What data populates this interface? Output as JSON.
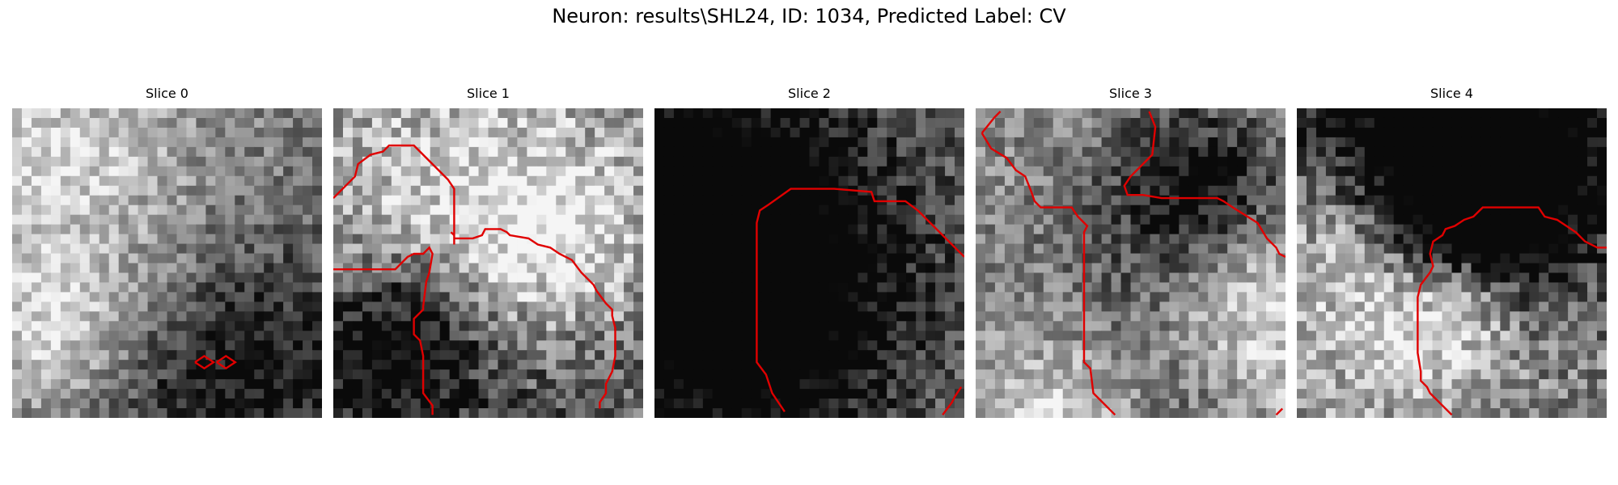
{
  "figure": {
    "title": "Neuron: results\\SHL24, ID: 1034, Predicted Label: CV"
  },
  "panels": [
    {
      "title": "Slice 0",
      "seed": 11,
      "base": 0.52,
      "contrast": 0.55,
      "contour_color": "#e00000",
      "contours": [
        [
          [
            0.59,
            0.82
          ],
          [
            0.62,
            0.8
          ],
          [
            0.65,
            0.82
          ],
          [
            0.62,
            0.84
          ],
          [
            0.59,
            0.82
          ]
        ],
        [
          [
            0.66,
            0.82
          ],
          [
            0.69,
            0.8
          ],
          [
            0.72,
            0.82
          ],
          [
            0.69,
            0.84
          ],
          [
            0.66,
            0.82
          ]
        ]
      ]
    },
    {
      "title": "Slice 1",
      "seed": 23,
      "base": 0.5,
      "contrast": 0.75,
      "contour_color": "#e00000",
      "contours": [
        [
          [
            0.0,
            0.29
          ],
          [
            0.07,
            0.22
          ],
          [
            0.08,
            0.18
          ],
          [
            0.12,
            0.15
          ],
          [
            0.16,
            0.14
          ],
          [
            0.18,
            0.12
          ],
          [
            0.26,
            0.12
          ],
          [
            0.31,
            0.17
          ],
          [
            0.34,
            0.2
          ],
          [
            0.37,
            0.23
          ],
          [
            0.39,
            0.26
          ],
          [
            0.39,
            0.37
          ],
          [
            0.39,
            0.38
          ],
          [
            0.39,
            0.4
          ],
          [
            0.39,
            0.42
          ],
          [
            0.39,
            0.43
          ],
          [
            0.39,
            0.44
          ],
          [
            0.39,
            0.41
          ],
          [
            0.39,
            0.42
          ],
          [
            0.39,
            0.41
          ],
          [
            0.39,
            0.4
          ],
          [
            0.39,
            0.41
          ],
          [
            0.39,
            0.42
          ],
          [
            0.39,
            0.41
          ],
          [
            0.38,
            0.4
          ],
          [
            0.39,
            0.41
          ],
          [
            0.39,
            0.42
          ],
          [
            0.39,
            0.41
          ],
          [
            0.39,
            0.4
          ],
          [
            0.39,
            0.41
          ],
          [
            0.39,
            0.42
          ],
          [
            0.39,
            0.41
          ],
          [
            0.39,
            0.42
          ],
          [
            0.39,
            0.41
          ],
          [
            0.39,
            0.4
          ],
          [
            0.39,
            0.41
          ],
          [
            0.39,
            0.42
          ],
          [
            0.39,
            0.41
          ],
          [
            0.39,
            0.4
          ],
          [
            0.39,
            0.41
          ],
          [
            0.39,
            0.42
          ],
          [
            0.41,
            0.42
          ],
          [
            0.43,
            0.42
          ],
          [
            0.45,
            0.42
          ],
          [
            0.48,
            0.41
          ],
          [
            0.49,
            0.39
          ],
          [
            0.5,
            0.39
          ],
          [
            0.54,
            0.39
          ],
          [
            0.56,
            0.4
          ],
          [
            0.57,
            0.41
          ],
          [
            0.63,
            0.42
          ],
          [
            0.66,
            0.44
          ],
          [
            0.7,
            0.45
          ],
          [
            0.73,
            0.47
          ],
          [
            0.77,
            0.49
          ],
          [
            0.8,
            0.53
          ],
          [
            0.84,
            0.57
          ],
          [
            0.85,
            0.59
          ],
          [
            0.88,
            0.63
          ],
          [
            0.9,
            0.65
          ],
          [
            0.9,
            0.67
          ],
          [
            0.91,
            0.71
          ],
          [
            0.91,
            0.8
          ],
          [
            0.9,
            0.85
          ],
          [
            0.89,
            0.87
          ],
          [
            0.88,
            0.89
          ],
          [
            0.88,
            0.92
          ],
          [
            0.86,
            0.95
          ],
          [
            0.86,
            0.97
          ]
        ],
        [
          [
            0.0,
            0.52
          ],
          [
            0.2,
            0.52
          ],
          [
            0.21,
            0.51
          ],
          [
            0.24,
            0.48
          ],
          [
            0.26,
            0.47
          ],
          [
            0.29,
            0.47
          ],
          [
            0.31,
            0.45
          ],
          [
            0.32,
            0.47
          ],
          [
            0.31,
            0.53
          ],
          [
            0.3,
            0.56
          ],
          [
            0.29,
            0.64
          ],
          [
            0.29,
            0.65
          ],
          [
            0.26,
            0.68
          ],
          [
            0.26,
            0.73
          ],
          [
            0.28,
            0.75
          ],
          [
            0.29,
            0.8
          ],
          [
            0.29,
            0.92
          ],
          [
            0.32,
            0.96
          ],
          [
            0.32,
            0.99
          ]
        ]
      ]
    },
    {
      "title": "Slice 2",
      "seed": 37,
      "base": 0.5,
      "contrast": 0.6,
      "contour_color": "#e00000",
      "contours": [
        [
          [
            1.0,
            0.48
          ],
          [
            0.93,
            0.41
          ],
          [
            0.85,
            0.33
          ],
          [
            0.81,
            0.3
          ],
          [
            0.71,
            0.3
          ],
          [
            0.7,
            0.27
          ],
          [
            0.58,
            0.26
          ],
          [
            0.44,
            0.26
          ],
          [
            0.37,
            0.31
          ],
          [
            0.34,
            0.33
          ],
          [
            0.33,
            0.37
          ],
          [
            0.33,
            0.82
          ],
          [
            0.36,
            0.86
          ],
          [
            0.38,
            0.92
          ],
          [
            0.42,
            0.98
          ]
        ],
        [
          [
            0.93,
            0.99
          ],
          [
            0.96,
            0.95
          ],
          [
            0.97,
            0.93
          ],
          [
            0.99,
            0.9
          ]
        ]
      ]
    },
    {
      "title": "Slice 3",
      "seed": 41,
      "base": 0.55,
      "contrast": 0.6,
      "contour_color": "#e00000",
      "contours": [
        [
          [
            0.02,
            0.08
          ],
          [
            0.06,
            0.03
          ],
          [
            0.08,
            0.01
          ]
        ],
        [
          [
            0.02,
            0.08
          ],
          [
            0.05,
            0.13
          ],
          [
            0.1,
            0.16
          ],
          [
            0.13,
            0.2
          ],
          [
            0.16,
            0.22
          ],
          [
            0.18,
            0.27
          ],
          [
            0.19,
            0.3
          ],
          [
            0.21,
            0.32
          ],
          [
            0.31,
            0.32
          ],
          [
            0.33,
            0.35
          ],
          [
            0.36,
            0.38
          ],
          [
            0.35,
            0.4
          ],
          [
            0.35,
            0.82
          ],
          [
            0.37,
            0.84
          ],
          [
            0.38,
            0.92
          ],
          [
            0.45,
            0.99
          ]
        ],
        [
          [
            0.56,
            0.01
          ],
          [
            0.58,
            0.06
          ],
          [
            0.57,
            0.15
          ],
          [
            0.5,
            0.22
          ],
          [
            0.48,
            0.25
          ],
          [
            0.49,
            0.28
          ],
          [
            0.54,
            0.28
          ],
          [
            0.6,
            0.29
          ],
          [
            0.78,
            0.29
          ],
          [
            0.8,
            0.3
          ],
          [
            0.83,
            0.32
          ],
          [
            0.91,
            0.37
          ],
          [
            0.94,
            0.42
          ],
          [
            0.97,
            0.45
          ],
          [
            0.98,
            0.47
          ],
          [
            1.0,
            0.48
          ]
        ],
        [
          [
            0.97,
            0.99
          ],
          [
            0.99,
            0.97
          ]
        ]
      ]
    },
    {
      "title": "Slice 4",
      "seed": 53,
      "base": 0.52,
      "contrast": 0.75,
      "contour_color": "#e00000",
      "contours": [
        [
          [
            0.5,
            0.99
          ],
          [
            0.43,
            0.92
          ],
          [
            0.42,
            0.9
          ],
          [
            0.4,
            0.88
          ],
          [
            0.4,
            0.85
          ],
          [
            0.39,
            0.79
          ],
          [
            0.39,
            0.61
          ],
          [
            0.4,
            0.57
          ],
          [
            0.43,
            0.53
          ],
          [
            0.44,
            0.51
          ],
          [
            0.43,
            0.47
          ],
          [
            0.44,
            0.43
          ],
          [
            0.47,
            0.41
          ],
          [
            0.48,
            0.39
          ],
          [
            0.51,
            0.38
          ],
          [
            0.54,
            0.36
          ],
          [
            0.57,
            0.35
          ],
          [
            0.6,
            0.32
          ],
          [
            0.78,
            0.32
          ],
          [
            0.8,
            0.35
          ],
          [
            0.84,
            0.36
          ],
          [
            0.87,
            0.38
          ],
          [
            0.9,
            0.4
          ],
          [
            0.93,
            0.43
          ],
          [
            0.97,
            0.45
          ],
          [
            1.0,
            0.45
          ]
        ]
      ]
    }
  ]
}
